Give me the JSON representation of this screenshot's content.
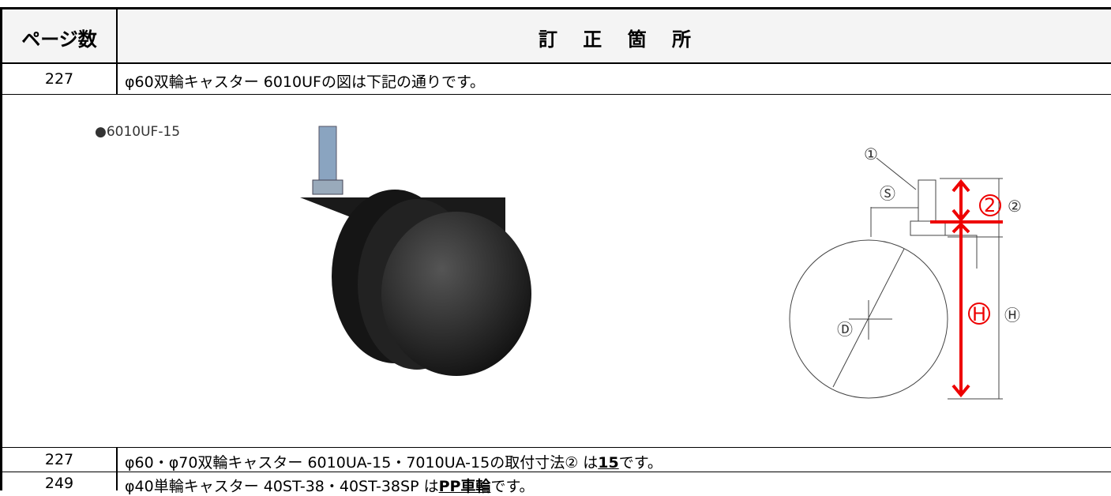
{
  "table": {
    "header": [
      "ページ数",
      "訂 正 箇 所"
    ],
    "rows": [
      {
        "page": "227",
        "text": [
          "φ60双輪キャスター 6010UFの図は下記の通りです。"
        ]
      },
      {
        "page": "227",
        "text": [
          "φ60・φ70双輪キャスター 6010UA-15・7010UA-15の取付寸法② は",
          "15",
          "です。"
        ]
      },
      {
        "page": "249",
        "text": [
          "φ40単輪キャスター 40ST-38・40ST-38SP は",
          "PP車輪",
          "です。"
        ]
      }
    ]
  },
  "figure": {
    "caption": "●6010UF-15",
    "labels": [
      "①",
      "Ⓢ",
      "2",
      "②",
      "H",
      "Ⓗ",
      "Ⓓ"
    ]
  }
}
